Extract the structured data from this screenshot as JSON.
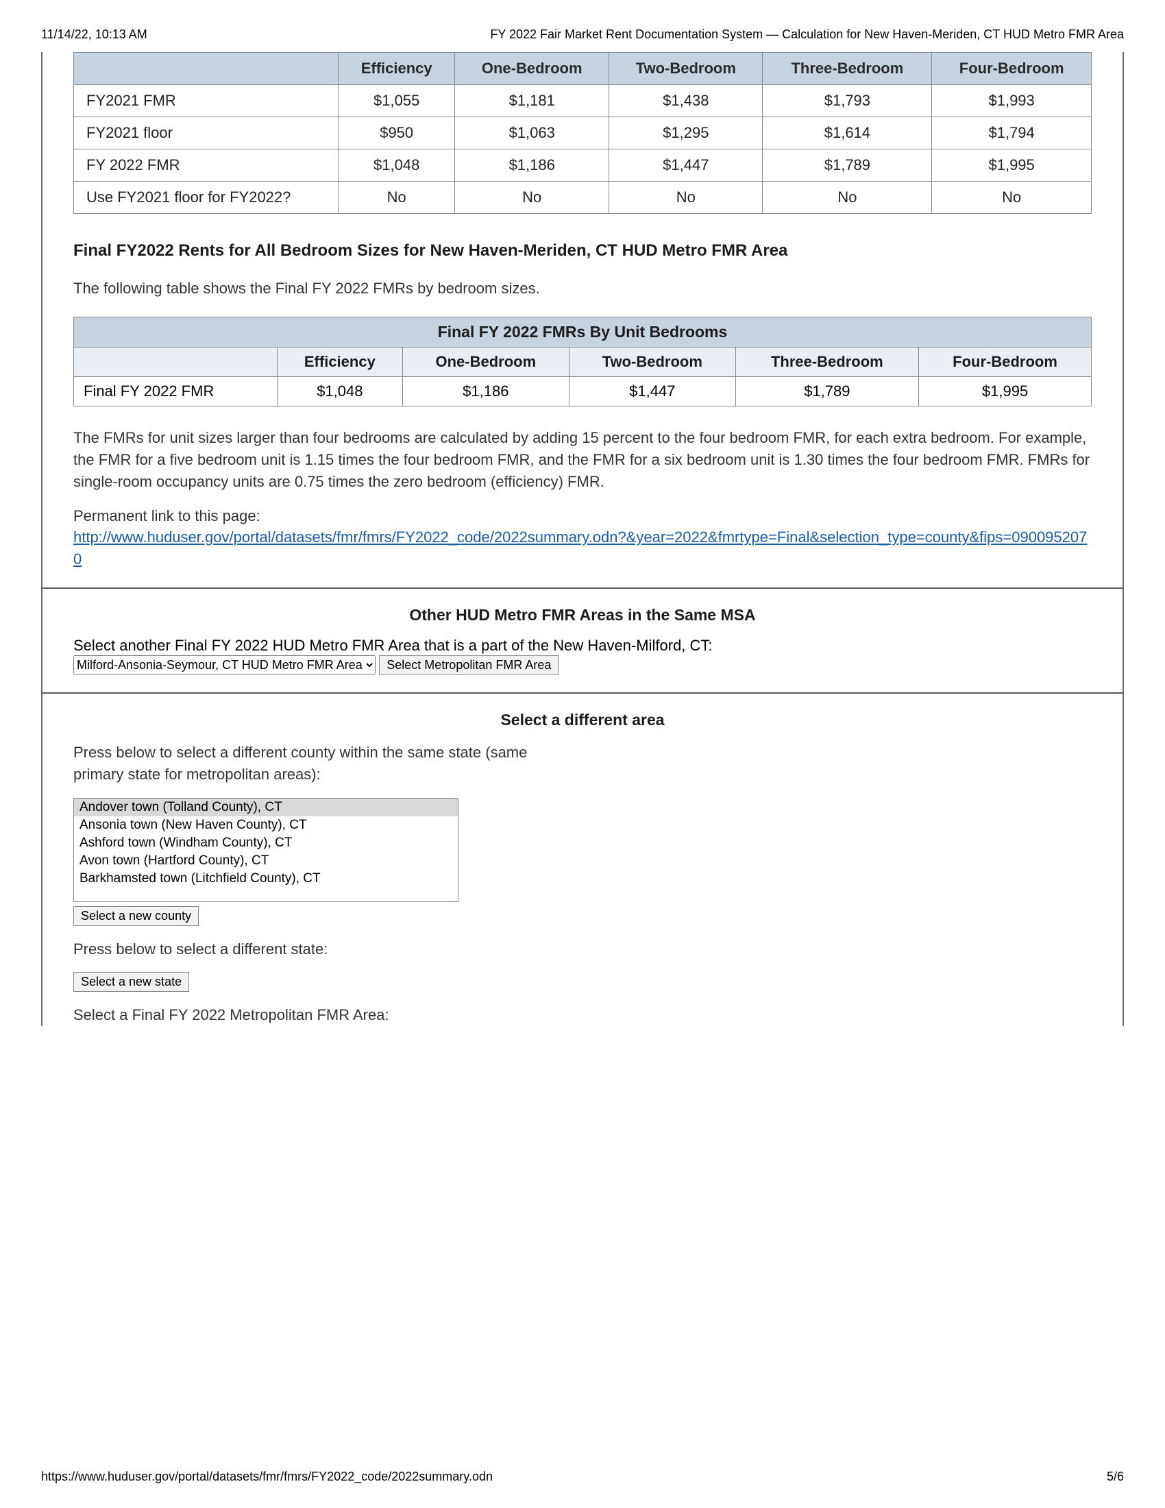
{
  "print_header": {
    "timestamp": "11/14/22, 10:13 AM",
    "title": "FY 2022 Fair Market Rent Documentation System — Calculation for New Haven-Meriden, CT HUD Metro FMR Area"
  },
  "table1": {
    "columns": [
      "",
      "Efficiency",
      "One-Bedroom",
      "Two-Bedroom",
      "Three-Bedroom",
      "Four-Bedroom"
    ],
    "rows": [
      {
        "label": "FY2021 FMR",
        "vals": [
          "$1,055",
          "$1,181",
          "$1,438",
          "$1,793",
          "$1,993"
        ]
      },
      {
        "label": "FY2021 floor",
        "vals": [
          "$950",
          "$1,063",
          "$1,295",
          "$1,614",
          "$1,794"
        ]
      },
      {
        "label": "FY 2022 FMR",
        "vals": [
          "$1,048",
          "$1,186",
          "$1,447",
          "$1,789",
          "$1,995"
        ]
      },
      {
        "label": "Use FY2021 floor for FY2022?",
        "vals": [
          "No",
          "No",
          "No",
          "No",
          "No"
        ]
      }
    ],
    "header_bg": "#c7d3de",
    "border_color": "#8a8a8a"
  },
  "section_title": "Final FY2022 Rents for All Bedroom Sizes for New Haven-Meriden, CT HUD Metro FMR Area",
  "intro_text": "The following table shows the Final FY 2022 FMRs by bedroom sizes.",
  "table2": {
    "caption": "Final FY 2022 FMRs By Unit Bedrooms",
    "columns": [
      "",
      "Efficiency",
      "One-Bedroom",
      "Two-Bedroom",
      "Three-Bedroom",
      "Four-Bedroom"
    ],
    "row_label": "Final FY 2022 FMR",
    "vals": [
      "$1,048",
      "$1,186",
      "$1,447",
      "$1,789",
      "$1,995"
    ]
  },
  "explain_text": "The FMRs for unit sizes larger than four bedrooms are calculated by adding 15 percent to the four bedroom FMR, for each extra bedroom. For example, the FMR for a five bedroom unit is 1.15 times the four bedroom FMR, and the FMR for a six bedroom unit is 1.30 times the four bedroom FMR. FMRs for single-room occupancy units are 0.75 times the zero bedroom (efficiency) FMR.",
  "perm_label": "Permanent link to this page:",
  "perm_link": "http://www.huduser.gov/portal/datasets/fmr/fmrs/FY2022_code/2022summary.odn?&year=2022&fmrtype=Final&selection_type=county&fips=0900952070",
  "other_msa": {
    "title": "Other HUD Metro FMR Areas in the Same MSA",
    "text": "Select another Final FY 2022 HUD Metro FMR Area that is a part of the New Haven-Milford, CT:",
    "select_value": "Milford-Ansonia-Seymour, CT HUD Metro FMR Area",
    "button": "Select Metropolitan FMR Area"
  },
  "diff_area": {
    "title": "Select a different area",
    "county_text": "Press below to select a different county within the same state (same primary state for metropolitan areas):",
    "county_options": [
      "Andover town (Tolland County), CT",
      "Ansonia town (New Haven County), CT",
      "Ashford town (Windham County), CT",
      "Avon town (Hartford County), CT",
      "Barkhamsted town (Litchfield County), CT"
    ],
    "county_button": "Select a new county",
    "state_text": "Press below to select a different state:",
    "state_button": "Select a new state",
    "metro_text": "Select a Final FY 2022 Metropolitan FMR Area:"
  },
  "footer": {
    "url": "https://www.huduser.gov/portal/datasets/fmr/fmrs/FY2022_code/2022summary.odn",
    "page": "5/6"
  }
}
